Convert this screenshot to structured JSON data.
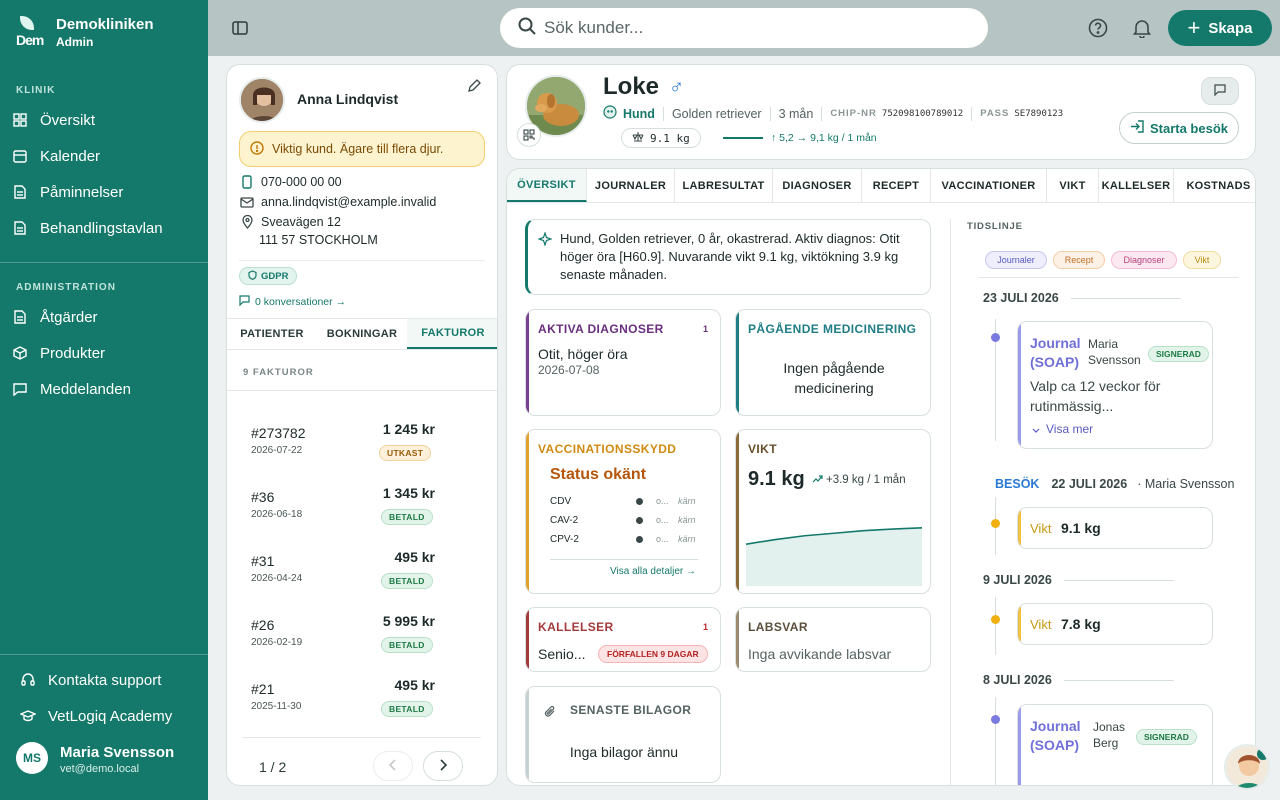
{
  "brand": {
    "name": "Demokliniken",
    "role": "Admin",
    "logo_text": "Dem"
  },
  "nav": {
    "klinik_label": "KLINIK",
    "klinik": [
      {
        "label": "Översikt"
      },
      {
        "label": "Kalender"
      },
      {
        "label": "Påminnelser"
      },
      {
        "label": "Behandlingstavlan"
      }
    ],
    "admin_label": "ADMINISTRATION",
    "admin": [
      {
        "label": "Åtgärder"
      },
      {
        "label": "Produkter"
      },
      {
        "label": "Meddelanden"
      }
    ],
    "support": "Kontakta support",
    "academy": "VetLogiq Academy"
  },
  "user": {
    "initials": "MS",
    "name": "Maria Svensson",
    "email": "vet@demo.local"
  },
  "topbar": {
    "search_placeholder": "Sök kunder...",
    "create_label": "Skapa"
  },
  "customer": {
    "name": "Anna Lindqvist",
    "warning": "Viktig kund. Ägare till flera djur.",
    "phone": "070-000 00 00",
    "email": "anna.lindqvist@example.invalid",
    "street": "Sveavägen 12",
    "city": "111 57 STOCKHOLM",
    "gdpr": "GDPR",
    "conversations": "0 konversationer →",
    "tabs": [
      "PATIENTER",
      "BOKNINGAR",
      "FAKTUROR"
    ],
    "invoice_count": "9 FAKTUROR",
    "invoices": [
      {
        "num": "#273782",
        "date": "2026-07-22",
        "amount": "1 245 kr",
        "status": "UTKAST"
      },
      {
        "num": "#36",
        "date": "2026-06-18",
        "amount": "1 345 kr",
        "status": "BETALD"
      },
      {
        "num": "#31",
        "date": "2026-04-24",
        "amount": "495 kr",
        "status": "BETALD"
      },
      {
        "num": "#26",
        "date": "2026-02-19",
        "amount": "5 995 kr",
        "status": "BETALD"
      },
      {
        "num": "#21",
        "date": "2025-11-30",
        "amount": "495 kr",
        "status": "BETALD"
      }
    ],
    "pager": "1 / 2"
  },
  "pet": {
    "name": "Loke",
    "sex_symbol": "♂",
    "species": "Hund",
    "breed": "Golden retriever",
    "age": "3 mån",
    "chip_label": "CHIP-NR",
    "chip": "752098100789012",
    "pass_label": "PASS",
    "pass": "SE7890123",
    "weight": "9.1 kg",
    "weight_trend": "↑ 5,2 → 9,1 kg / 1 mån",
    "start_visit": "Starta besök"
  },
  "tabs": [
    "ÖVERSIKT",
    "JOURNALER",
    "LABRESULTAT",
    "DIAGNOSER",
    "RECEPT",
    "VACCINATIONER",
    "VIKT",
    "KALLELSER",
    "KOSTNADS"
  ],
  "summary": "Hund, Golden retriever, 0 år, okastrerad. Aktiv diagnos: Otit höger öra [H60.9]. Nuvarande vikt 9.1 kg, viktökning 3.9 kg senaste månaden.",
  "cards": {
    "diagnoses": {
      "title": "AKTIVA DIAGNOSER",
      "count": "1",
      "item": "Otit, höger öra",
      "date": "2026-07-08",
      "color": "#7a3f8f"
    },
    "medication": {
      "title": "PÅGÅENDE MEDICINERING",
      "text": "Ingen pågående medicinering",
      "color": "#1f7d86"
    },
    "vaccination": {
      "title": "VACCINATIONSSKYDD",
      "status": "Status okänt",
      "rows": [
        {
          "name": "CDV",
          "val": "o...",
          "core": "kärn"
        },
        {
          "name": "CAV-2",
          "val": "o...",
          "core": "kärn"
        },
        {
          "name": "CPV-2",
          "val": "o...",
          "core": "kärn"
        }
      ],
      "link": "Visa alla detaljer →",
      "color": "#e0a22a"
    },
    "weight": {
      "title": "VIKT",
      "value": "9.1 kg",
      "change": "+3.9 kg / 1 mån",
      "color": "#8a6a3a"
    },
    "recalls": {
      "title": "KALLELSER",
      "count": "1",
      "item": "Senio...",
      "badge": "FÖRFALLEN 9 DAGAR",
      "color": "#a33a3a"
    },
    "labs": {
      "title": "LABSVAR",
      "text": "Inga avvikande labsvar",
      "color": "#9a8a70"
    },
    "attachments": {
      "title": "SENASTE BILAGOR",
      "text": "Inga bilagor ännu",
      "color": "#c7d0d0"
    }
  },
  "timeline": {
    "title": "TIDSLINJE",
    "chips": [
      "Journaler",
      "Recept",
      "Diagnoser",
      "Vikt"
    ],
    "d1": "23 JULI 2026",
    "e1": {
      "type": "Journal",
      "sub": "(SOAP)",
      "author_first": "Maria",
      "author_last": "Svensson",
      "badge": "SIGNERAD",
      "text": "Valp ca 12 veckor för rutinmässig...",
      "more": "Visa mer"
    },
    "visit_label": "BESÖK",
    "visit_date": "22 JULI 2026",
    "visit_who": "· Maria Svensson",
    "e2": {
      "type": "Vikt",
      "value": "9.1 kg"
    },
    "d2": "9 JULI 2026",
    "e3": {
      "type": "Vikt",
      "value": "7.8 kg"
    },
    "d3": "8 JULI 2026",
    "e4": {
      "type": "Journal",
      "sub": "(SOAP)",
      "author_first": "Jonas",
      "author_last": "Berg",
      "badge": "SIGNERAD"
    }
  },
  "colors": {
    "primary": "#14796a",
    "topbar": "#b6c5c4"
  },
  "chart_data": {
    "type": "area",
    "y": [
      5.2,
      6.3,
      7.2,
      7.8,
      8.4,
      8.8,
      9.1
    ]
  }
}
